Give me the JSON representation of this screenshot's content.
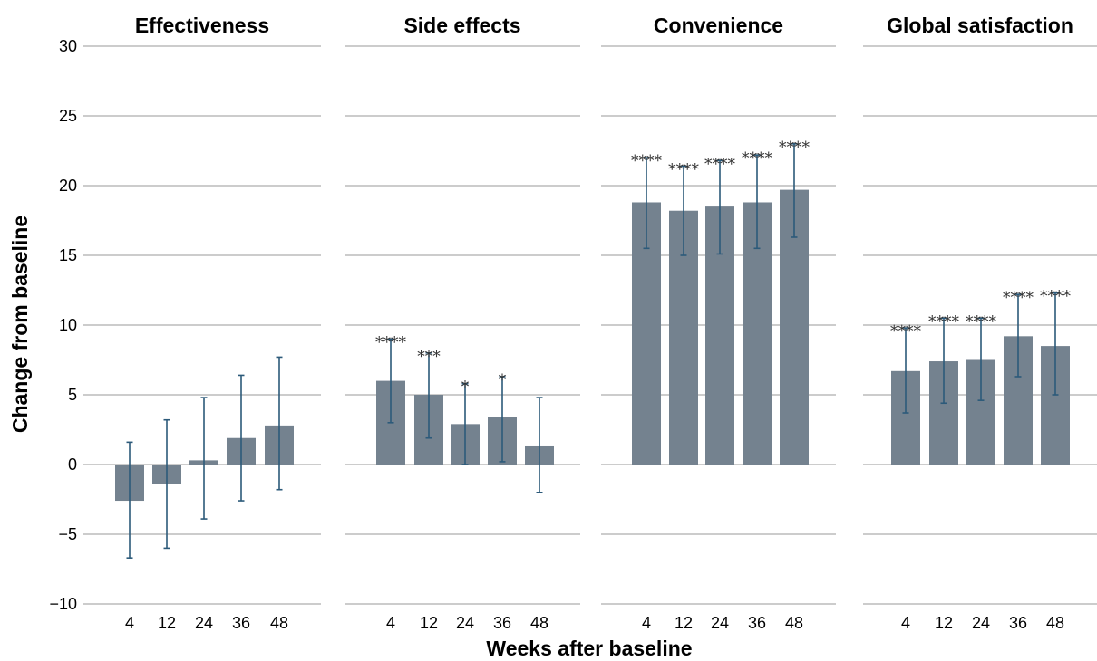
{
  "chart_data": {
    "type": "bar",
    "ylabel": "Change from baseline",
    "xlabel": "Weeks after baseline",
    "ylim": [
      -10,
      30
    ],
    "yticks": [
      -10,
      -5,
      0,
      5,
      10,
      15,
      20,
      25,
      30
    ],
    "ytick_labels": [
      "−10",
      "−5",
      "0",
      "5",
      "10",
      "15",
      "20",
      "25",
      "30"
    ],
    "grid": true,
    "colors": {
      "bar": "#74828f",
      "error": "#2c5a7a",
      "grid": "#9a9a9a"
    },
    "categories": [
      "4",
      "12",
      "24",
      "36",
      "48"
    ],
    "panels": [
      {
        "title": "Effectiveness",
        "values": [
          -2.6,
          -1.4,
          0.3,
          1.9,
          2.8
        ],
        "err_low": [
          -6.7,
          -6.0,
          -3.9,
          -2.6,
          -1.8
        ],
        "err_high": [
          1.6,
          3.2,
          4.8,
          6.4,
          7.7
        ],
        "sig": [
          "",
          "",
          "",
          "",
          ""
        ]
      },
      {
        "title": "Side effects",
        "values": [
          6.0,
          5.0,
          2.9,
          3.4,
          1.3
        ],
        "err_low": [
          3.0,
          1.9,
          0.0,
          0.2,
          -2.0
        ],
        "err_high": [
          9.0,
          8.0,
          5.8,
          6.3,
          4.8
        ],
        "sig": [
          "****",
          "***",
          "*",
          "*",
          ""
        ]
      },
      {
        "title": "Convenience",
        "values": [
          18.8,
          18.2,
          18.5,
          18.8,
          19.7
        ],
        "err_low": [
          15.5,
          15.0,
          15.1,
          15.5,
          16.3
        ],
        "err_high": [
          22.0,
          21.4,
          21.8,
          22.2,
          23.0
        ],
        "sig": [
          "****",
          "****",
          "****",
          "****",
          "****"
        ]
      },
      {
        "title": "Global satisfaction",
        "values": [
          6.7,
          7.4,
          7.5,
          9.2,
          8.5
        ],
        "err_low": [
          3.7,
          4.4,
          4.6,
          6.3,
          5.0
        ],
        "err_high": [
          9.8,
          10.5,
          10.5,
          12.2,
          12.3
        ],
        "sig": [
          "****",
          "****",
          "****",
          "****",
          "****"
        ]
      }
    ]
  }
}
